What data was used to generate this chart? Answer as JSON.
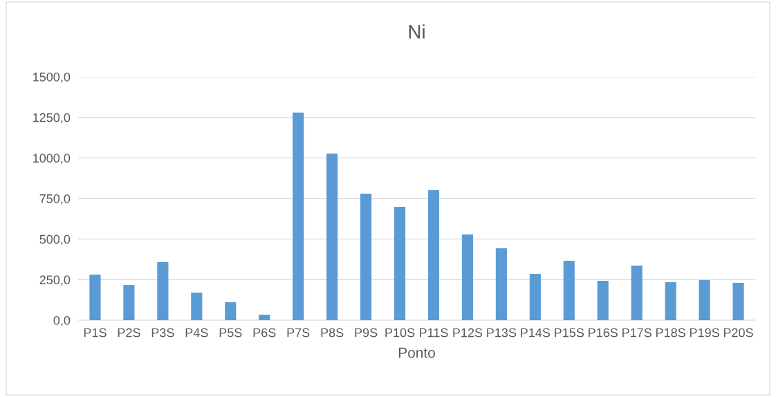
{
  "chart_data": {
    "type": "bar",
    "title": "Ni",
    "xlabel": "Ponto",
    "categories": [
      "P1S",
      "P2S",
      "P3S",
      "P4S",
      "P5S",
      "P6S",
      "P7S",
      "P8S",
      "P9S",
      "P10S",
      "P11S",
      "P12S",
      "P13S",
      "P14S",
      "P15S",
      "P16S",
      "P17S",
      "P18S",
      "P19S",
      "P20S"
    ],
    "values": [
      281,
      217,
      358,
      170,
      111,
      34,
      1280,
      1027,
      780,
      699,
      801,
      528,
      443,
      285,
      366,
      243,
      337,
      234,
      247,
      230
    ],
    "color": "#5b9bd5",
    "ylim": [
      0,
      1500
    ],
    "yticks": [
      {
        "value": 0,
        "label": "0,0"
      },
      {
        "value": 250,
        "label": "250,0"
      },
      {
        "value": 500,
        "label": "500,0"
      },
      {
        "value": 750,
        "label": "750,0"
      },
      {
        "value": 1000,
        "label": "1000,0"
      },
      {
        "value": 1250,
        "label": "1250,0"
      },
      {
        "value": 1500,
        "label": "1500,0"
      }
    ],
    "grid": "y",
    "legend": false
  }
}
